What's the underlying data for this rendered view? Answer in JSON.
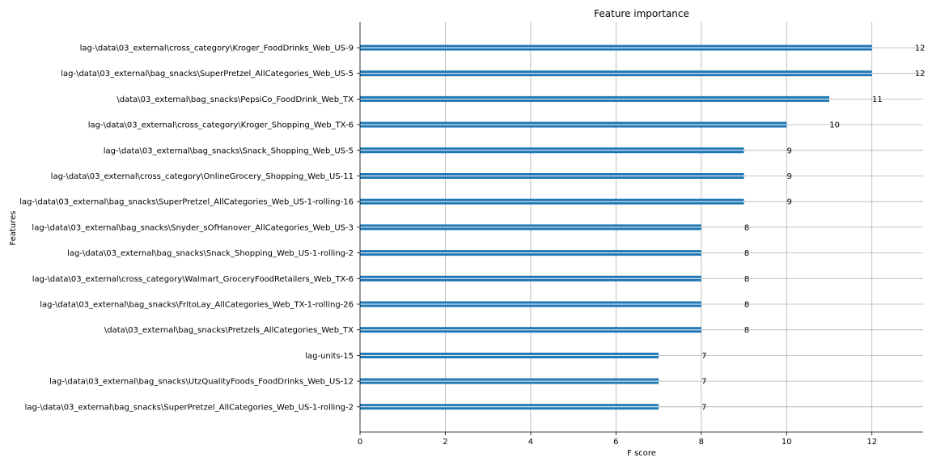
{
  "chart_data": {
    "type": "bar",
    "orientation": "horizontal",
    "title": "Feature importance",
    "xlabel": "F score",
    "ylabel": "Features",
    "xlim": [
      0,
      13.2
    ],
    "xticks": [
      0,
      2,
      4,
      6,
      8,
      10,
      12
    ],
    "grid": true,
    "bar_color": "#1f77b4",
    "categories": [
      "lag-\\data\\03_external\\cross_category\\Kroger_FoodDrinks_Web_US-9",
      "lag-\\data\\03_external\\bag_snacks\\SuperPretzel_AllCategories_Web_US-5",
      "\\data\\03_external\\bag_snacks\\PepsiCo_FoodDrink_Web_TX",
      "lag-\\data\\03_external\\cross_category\\Kroger_Shopping_Web_TX-6",
      "lag-\\data\\03_external\\bag_snacks\\Snack_Shopping_Web_US-5",
      "lag-\\data\\03_external\\cross_category\\OnlineGrocery_Shopping_Web_US-11",
      "lag-\\data\\03_external\\bag_snacks\\SuperPretzel_AllCategories_Web_US-1-rolling-16",
      "lag-\\data\\03_external\\bag_snacks\\Snyder_sOfHanover_AllCategories_Web_US-3",
      "lag-\\data\\03_external\\bag_snacks\\Snack_Shopping_Web_US-1-rolling-2",
      "lag-\\data\\03_external\\cross_category\\Walmart_GroceryFoodRetailers_Web_TX-6",
      "lag-\\data\\03_external\\bag_snacks\\FritoLay_AllCategories_Web_TX-1-rolling-26",
      "\\data\\03_external\\bag_snacks\\Pretzels_AllCategories_Web_TX",
      "lag-units-15",
      "lag-\\data\\03_external\\bag_snacks\\UtzQualityFoods_FoodDrinks_Web_US-12",
      "lag-\\data\\03_external\\bag_snacks\\SuperPretzel_AllCategories_Web_US-1-rolling-2"
    ],
    "values": [
      12,
      12,
      11,
      10,
      9,
      9,
      9,
      8,
      8,
      8,
      8,
      8,
      7,
      7,
      7
    ]
  }
}
